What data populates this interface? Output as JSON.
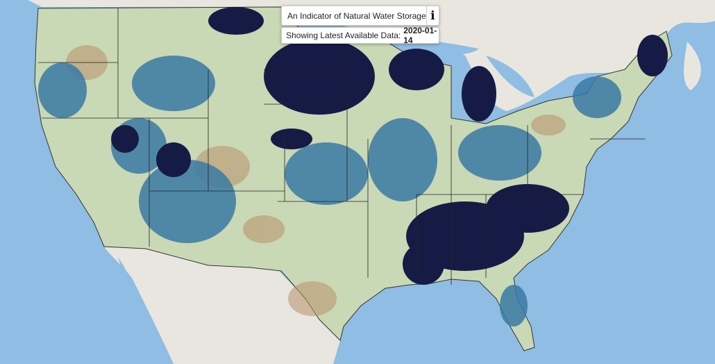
{
  "header": {
    "title": "An Indicator of Natural Water Storage",
    "info_icon": "i"
  },
  "status": {
    "label": "Showing Latest Available Data:",
    "date": "2020-01-14"
  }
}
